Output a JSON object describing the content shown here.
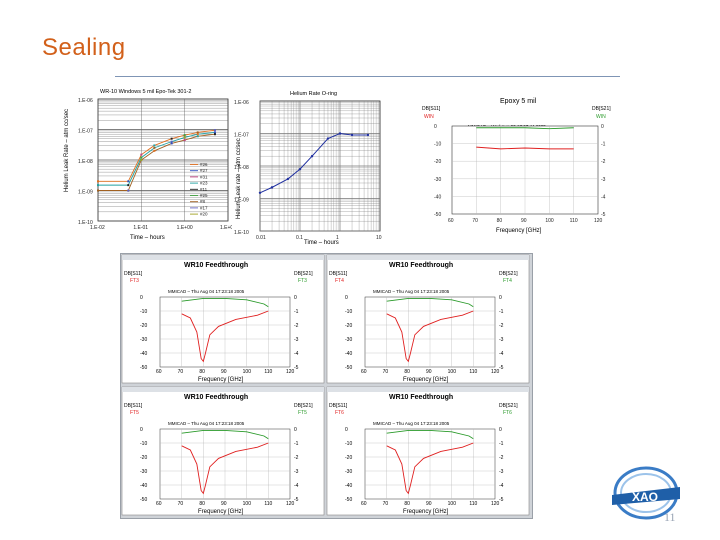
{
  "slide": {
    "title": "Sealing",
    "page_number": "11"
  },
  "logo": {
    "text": "XAO",
    "color": "#1f5fa8"
  },
  "colors": {
    "red": "#e02020",
    "green": "#2a9a2a",
    "blue": "#2030a0",
    "title": "#d2601a"
  },
  "charts": [
    {
      "id": "windows",
      "title": "WR-10 Windows    5 mil Epo-Tek 301-2",
      "xlabel": "Time – hours",
      "ylabel": "Helium Leak Rate – atm cc/sec",
      "xticks": [
        "1.E-02",
        "1.E-01",
        "1.E+00",
        "1.E+01"
      ],
      "yticks": [
        "1.E-06",
        "1.E-07",
        "1.E-08",
        "1.E-09",
        "1.E-10"
      ],
      "legend": [
        "#26",
        "#27",
        "#31",
        "#23",
        "#11",
        "#25",
        "#8",
        "#17",
        "#20"
      ]
    },
    {
      "id": "oring",
      "title": "Helium Rate O-ring",
      "xlabel": "Time – hours",
      "ylabel": "Helium Leak rate – atm cc/sec",
      "xticks": [
        "0.01",
        "0.1",
        "1",
        "10"
      ],
      "yticks": [
        "1.E-06",
        "1.E-07",
        "1.E-08",
        "1.E-09",
        "1.E-10"
      ]
    },
    {
      "id": "epoxy",
      "title": "Epoxy 5 mil",
      "subtitle": "MMICAD – Wed Aug 03 17:07:44 2005",
      "left_label": "DB[S11]",
      "left_sub": "WIN",
      "right_label": "DB[S21]",
      "right_sub": "WIN",
      "xlabel": "Frequency [GHz]",
      "xticks": [
        "60",
        "70",
        "80",
        "90",
        "100",
        "110",
        "120"
      ],
      "yticks_left": [
        "0",
        "-10",
        "-20",
        "-30",
        "-40",
        "-50"
      ],
      "yticks_right": [
        "0",
        "-1",
        "-2",
        "-3",
        "-4",
        "-5"
      ]
    }
  ],
  "feedthrough": [
    {
      "title": "WR10 Feedthrough",
      "subtitle": "MMICAD – Thu Aug 04 17:23:18 2005",
      "left_label": "DB[S11]",
      "left_sub": "FT3",
      "right_label": "DB[S21]",
      "right_sub": "FT3",
      "xlabel": "Frequency [GHz]"
    },
    {
      "title": "WR10 Feedthrough",
      "subtitle": "MMICAD – Thu Aug 04 17:23:18 2005",
      "left_label": "DB[S11]",
      "left_sub": "FT4",
      "right_label": "DB[S21]",
      "right_sub": "FT4",
      "xlabel": "Frequency [GHz]"
    },
    {
      "title": "WR10 Feedthrough",
      "subtitle": "MMICAD – Thu Aug 04 17:23:18 2005",
      "left_label": "DB[S11]",
      "left_sub": "FT5",
      "right_label": "DB[S21]",
      "right_sub": "FT5",
      "xlabel": "Frequency [GHz]"
    },
    {
      "title": "WR10 Feedthrough",
      "subtitle": "MMICAD – Thu Aug 04 17:23:18 2005",
      "left_label": "DB[S11]",
      "left_sub": "FT6",
      "right_label": "DB[S21]",
      "right_sub": "FT6",
      "xlabel": "Frequency [GHz]"
    }
  ],
  "feedthrough_axes": {
    "xticks": [
      "60",
      "70",
      "80",
      "90",
      "100",
      "110",
      "120"
    ],
    "yticks_left": [
      "0",
      "-10",
      "-20",
      "-30",
      "-40",
      "-50"
    ],
    "yticks_right": [
      "0",
      "-1",
      "-2",
      "-3",
      "-4",
      "-5"
    ]
  },
  "chart_data": [
    {
      "type": "scatter",
      "title": "WR-10 Windows    5 mil Epo-Tek 301-2",
      "xlabel": "Time – hours",
      "ylabel": "Helium Leak Rate – atm cc/sec",
      "x_scale": "log",
      "y_scale": "log",
      "xlim": [
        0.01,
        10
      ],
      "ylim": [
        1e-10,
        1e-06
      ],
      "series": [
        {
          "name": "#26",
          "x": [
            0.01,
            0.05,
            0.1,
            0.2,
            0.5,
            1,
            2,
            5
          ],
          "y": [
            2e-09,
            2e-09,
            1.5e-08,
            3e-08,
            5e-08,
            6.5e-08,
            8e-08,
            9.5e-08
          ]
        },
        {
          "name": "#11",
          "x": [
            0.01,
            0.05,
            0.1,
            0.2,
            0.5,
            1,
            2,
            5
          ],
          "y": [
            1.5e-09,
            1.5e-09,
            1.2e-08,
            2.5e-08,
            4e-08,
            5.5e-08,
            7e-08,
            8e-08
          ]
        },
        {
          "name": "#8",
          "x": [
            0.01,
            0.05,
            0.1,
            0.2,
            0.5,
            1,
            2,
            5
          ],
          "y": [
            1e-09,
            1e-09,
            1e-08,
            2e-08,
            3.5e-08,
            4.5e-08,
            6e-08,
            7e-08
          ]
        }
      ]
    },
    {
      "type": "line",
      "title": "Helium Rate O-ring",
      "xlabel": "Time – hours",
      "ylabel": "Helium Leak rate – atm cc/sec",
      "x_scale": "log",
      "y_scale": "log",
      "xlim": [
        0.01,
        10
      ],
      "ylim": [
        1e-10,
        1e-06
      ],
      "series": [
        {
          "name": "O-ring",
          "x": [
            0.01,
            0.02,
            0.05,
            0.1,
            0.2,
            0.5,
            1,
            2,
            5
          ],
          "y": [
            1.5e-09,
            2.2e-09,
            4e-09,
            8e-09,
            2e-08,
            7e-08,
            1e-07,
            9e-08,
            9e-08
          ]
        }
      ]
    },
    {
      "type": "line",
      "title": "Epoxy 5 mil",
      "xlabel": "Frequency [GHz]",
      "xlim": [
        60,
        120
      ],
      "ylim": [
        -50,
        0
      ],
      "series": [
        {
          "name": "DB[S11] WIN",
          "x": [
            70,
            80,
            90,
            100,
            110
          ],
          "y": [
            -12,
            -13,
            -12.5,
            -13,
            -13
          ]
        },
        {
          "name": "DB[S21] WIN",
          "x": [
            70,
            80,
            90,
            100,
            110
          ],
          "y": [
            -0.1,
            -0.1,
            -0.1,
            -0.15,
            -0.1
          ]
        }
      ]
    }
  ]
}
